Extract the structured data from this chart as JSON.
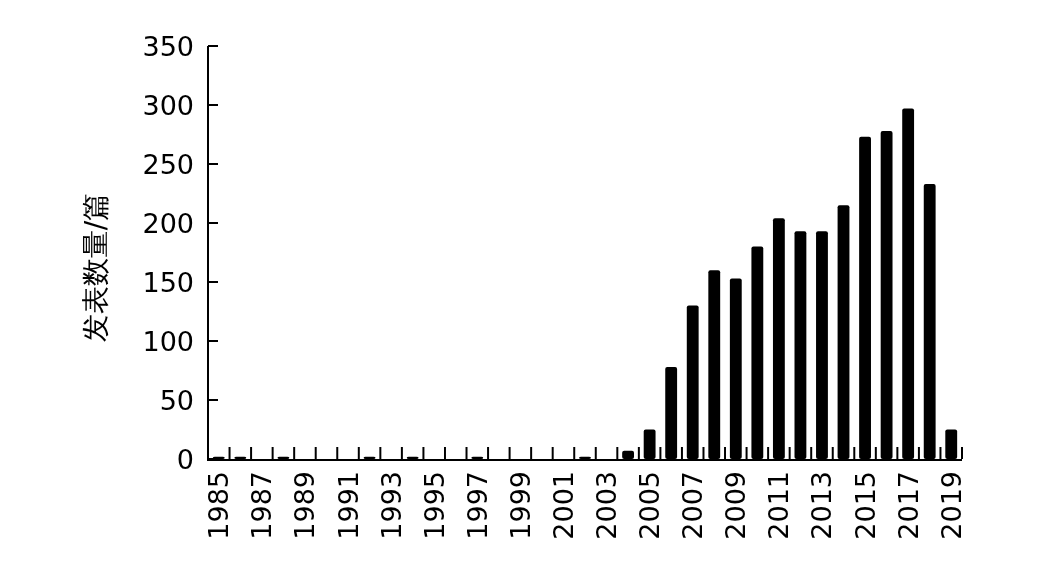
{
  "chart_data": {
    "type": "bar",
    "ylabel": "发表数量/篇",
    "categories": [
      "1985",
      null,
      "1987",
      null,
      "1989",
      null,
      "1991",
      null,
      "1993",
      null,
      "1995",
      null,
      "1997",
      null,
      "1999",
      null,
      "2001",
      null,
      "2003",
      null,
      "2005",
      null,
      "2007",
      null,
      "2009",
      null,
      "2011",
      null,
      "2013",
      null,
      "2015",
      null,
      "2017",
      null,
      "2019"
    ],
    "values": [
      2,
      2,
      0,
      2,
      0,
      0,
      0,
      2,
      0,
      2,
      0,
      0,
      2,
      0,
      0,
      0,
      0,
      2,
      0,
      7,
      25,
      78,
      130,
      160,
      153,
      180,
      204,
      193,
      193,
      215,
      273,
      278,
      297,
      233,
      25
    ],
    "color": "#000000",
    "ylim": [
      0,
      350
    ],
    "yticks": [
      0,
      50,
      100,
      150,
      200,
      250,
      300,
      350
    ]
  }
}
